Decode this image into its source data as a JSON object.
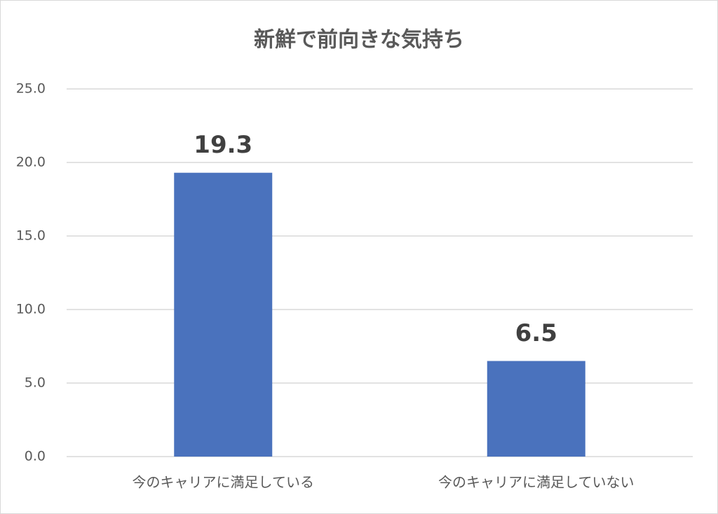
{
  "chart_data": {
    "type": "bar",
    "title": "新鮮で前向きな気持ち",
    "categories": [
      "今のキャリアに満足している",
      "今のキャリアに満足していない"
    ],
    "values": [
      19.3,
      6.5
    ],
    "value_labels": [
      "19.3",
      "6.5"
    ],
    "color": "#4a72bd",
    "ylim": [
      0,
      25
    ],
    "yticks": [
      {
        "value": 0,
        "label": "0.0"
      },
      {
        "value": 5,
        "label": "5.0"
      },
      {
        "value": 10,
        "label": "10.0"
      },
      {
        "value": 15,
        "label": "15.0"
      },
      {
        "value": 20,
        "label": "20.0"
      },
      {
        "value": 25,
        "label": "25.0"
      }
    ],
    "grid": true
  }
}
